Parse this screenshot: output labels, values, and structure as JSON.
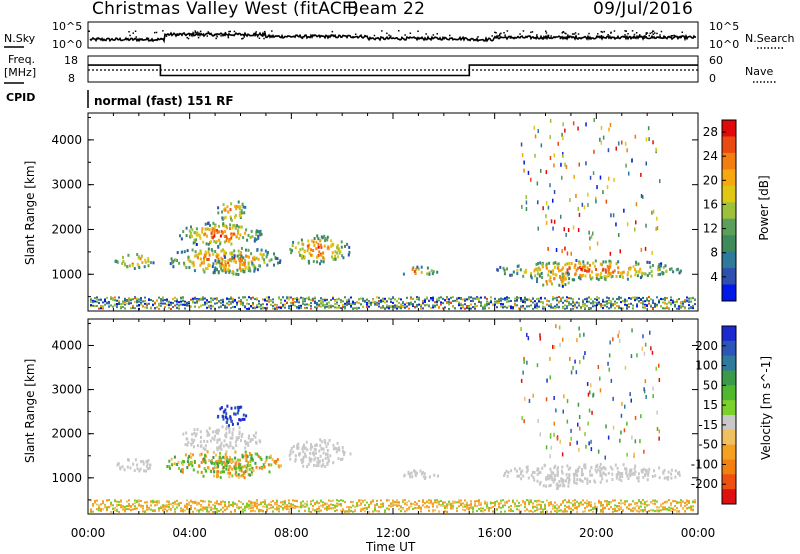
{
  "header": {
    "title": "Christmas Valley West (fitACF)",
    "beam": "Beam 22",
    "date": "09/Jul/2016"
  },
  "strip_labels": {
    "nsky": "N.Sky",
    "nsky_ticks": [
      "10^5",
      "10^0"
    ],
    "nsearch": "N.Search",
    "nsearch_ticks": [
      "10^5",
      "10^0"
    ],
    "freq": "Freq.",
    "freq_unit": "[MHz]",
    "freq_ticks": [
      "18",
      "8"
    ],
    "nave": "Nave",
    "nave_ticks": [
      "60",
      "0"
    ],
    "cpid": "CPID",
    "cpid_text": "normal (fast) 151 RF"
  },
  "chart_data": {
    "type": "heatmap",
    "x_ticks": [
      "00:00",
      "04:00",
      "08:00",
      "12:00",
      "16:00",
      "20:00",
      "00:00"
    ],
    "xlabel": "Time UT",
    "ylabel": "Slant Range [km]",
    "y_ticks": [
      1000,
      2000,
      3000,
      4000
    ],
    "xlim_hours": [
      0,
      24
    ],
    "ylim_km": [
      180,
      4600
    ],
    "frequency_steps": [
      {
        "from_hour": 0,
        "to_hour": 2.85,
        "freq_mhz": 14.5
      },
      {
        "from_hour": 2.85,
        "to_hour": 15,
        "freq_mhz": 10.5
      },
      {
        "from_hour": 15,
        "to_hour": 24,
        "freq_mhz": 14.5
      }
    ],
    "power_panel": {
      "colorbar_label": "Power [dB]",
      "colorbar_ticks": [
        4,
        8,
        12,
        16,
        20,
        24,
        28
      ],
      "range": [
        0,
        30
      ],
      "colors": [
        "#0018e8",
        "#2f4fae",
        "#2e7a9a",
        "#3e8a5a",
        "#5aa05a",
        "#9cc03a",
        "#e0c812",
        "#f6a80e",
        "#f27d10",
        "#ea4a10",
        "#e00a0a"
      ]
    },
    "velocity_panel": {
      "colorbar_label": "Velocity [m s^-1]",
      "colorbar_ticks": [
        200,
        100,
        50,
        15,
        -15,
        -50,
        -100,
        -200
      ],
      "range": [
        -250,
        250
      ],
      "colors": [
        "#1a2ad0",
        "#2b56b8",
        "#2f7a9c",
        "#3a9a4a",
        "#4fb82e",
        "#7cd02c",
        "#c8c8c8",
        "#f0c060",
        "#f4a020",
        "#f28010",
        "#ee5010",
        "#e01010"
      ]
    },
    "echo_regions": [
      {
        "t0": 1.0,
        "t1": 2.6,
        "r0": 1150,
        "r1": 1500
      },
      {
        "t0": 3.0,
        "t1": 7.6,
        "r0": 1050,
        "r1": 1650
      },
      {
        "t0": 4.8,
        "t1": 6.6,
        "r0": 1000,
        "r1": 1450
      },
      {
        "t0": 3.5,
        "t1": 6.8,
        "r0": 1650,
        "r1": 2200
      },
      {
        "t0": 5.0,
        "t1": 6.2,
        "r0": 2200,
        "r1": 2700
      },
      {
        "t0": 7.8,
        "t1": 10.3,
        "r0": 1250,
        "r1": 1900
      },
      {
        "t0": 12.2,
        "t1": 13.8,
        "r0": 1000,
        "r1": 1200
      },
      {
        "t0": 16.0,
        "t1": 23.4,
        "r0": 900,
        "r1": 1350
      },
      {
        "t0": 17.5,
        "t1": 19.2,
        "r0": 750,
        "r1": 1100
      }
    ]
  }
}
